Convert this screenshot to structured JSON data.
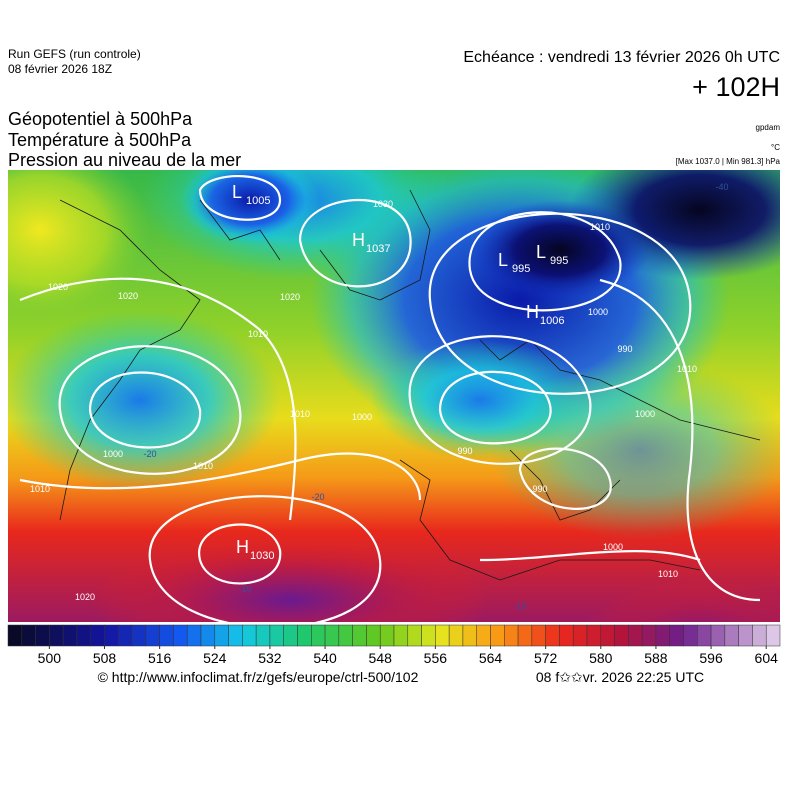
{
  "header": {
    "run": "Run GEFS (run controle)",
    "date": "08 février 2026 18Z",
    "echeance": "Echéance : vendredi 13 février 2026 0h UTC",
    "lead": "+ 102H"
  },
  "legend": {
    "lines": [
      "Géopotentiel à 500hPa",
      "Température à 500hPa",
      "Pression au niveau de la mer"
    ],
    "unit_geo": "gpdam",
    "unit_temp": "°C",
    "range": "[Max 1037.0 | Min 981.3] hPa"
  },
  "map": {
    "centers": [
      {
        "letter": "H",
        "value": "1037"
      },
      {
        "letter": "L",
        "value": "995"
      },
      {
        "letter": "L",
        "value": "995"
      },
      {
        "letter": "H",
        "value": "1006"
      },
      {
        "letter": "H",
        "value": "1030"
      },
      {
        "letter": "L",
        "value": "1005"
      }
    ],
    "isobar_labels": [
      "1020",
      "1020",
      "1010",
      "1020",
      "1030",
      "1010",
      "1000",
      "990",
      "1000",
      "990",
      "1000",
      "1010",
      "1010",
      "1010",
      "990",
      "1000",
      "1010",
      "1020",
      "1010",
      "1000"
    ],
    "temp_labels": [
      "-40",
      "-20",
      "-20",
      "-10",
      "-10"
    ]
  },
  "colorbar": {
    "lim": [
      494,
      606
    ],
    "ticks": [
      500,
      508,
      516,
      524,
      532,
      540,
      548,
      556,
      564,
      572,
      580,
      588,
      596,
      604
    ]
  },
  "footer": {
    "source": "© http://www.infoclimat.fr/z/gefs/europe/ctrl-500/102",
    "timestamp": "08 f✩✩vr. 2026 22:25 UTC"
  }
}
